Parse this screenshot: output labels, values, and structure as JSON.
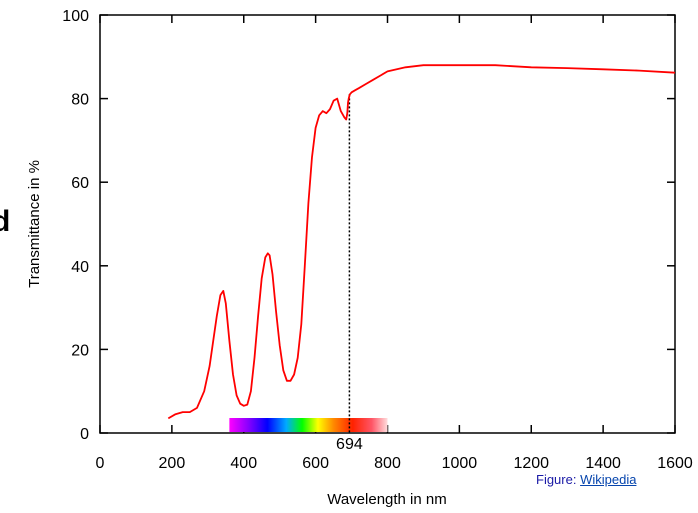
{
  "side_fragment": "d",
  "credit": {
    "prefix": "Figure: ",
    "link_text": "Wikipedia"
  },
  "chart_data": {
    "type": "line",
    "xlabel": "Wavelength in nm",
    "ylabel": "Transmittance in %",
    "xlim": [
      0,
      1600
    ],
    "ylim": [
      0,
      100
    ],
    "xticks": [
      0,
      200,
      400,
      600,
      800,
      1000,
      1200,
      1400,
      1600
    ],
    "yticks": [
      0,
      20,
      40,
      60,
      80,
      100
    ],
    "grid": false,
    "line_color": "#ff0000",
    "marker": {
      "x": 694,
      "label": "694",
      "style": "dotted"
    },
    "spectrum_bar": {
      "x_start": 360,
      "x_end": 800
    },
    "series": [
      {
        "x": [
          190,
          210,
          230,
          250,
          270,
          290,
          305,
          315,
          325,
          335,
          343,
          350,
          360,
          370,
          380,
          390,
          400,
          410,
          420,
          430,
          440,
          450,
          460,
          467,
          472,
          480,
          490,
          500,
          510,
          520,
          530,
          540,
          550,
          560,
          570,
          580,
          590,
          600,
          610,
          620,
          630,
          640,
          650,
          660,
          670,
          680,
          685,
          688,
          690,
          692,
          695,
          700,
          710,
          720,
          740,
          760,
          780,
          800,
          850,
          900,
          1000,
          1100,
          1200,
          1300,
          1400,
          1500,
          1600
        ],
        "y": [
          3.5,
          4.5,
          5,
          5,
          6,
          10,
          16,
          22,
          28,
          33,
          34,
          31,
          22,
          14,
          9,
          7,
          6.5,
          6.8,
          10,
          18,
          28,
          37,
          42,
          43,
          42.5,
          38,
          29,
          21,
          15,
          12.5,
          12.5,
          14,
          18,
          26,
          40,
          55,
          66,
          73,
          76,
          77,
          76.5,
          77.5,
          79.5,
          80,
          77,
          75.5,
          75,
          76.5,
          79,
          80,
          81,
          81.5,
          82,
          82.5,
          83.5,
          84.5,
          85.5,
          86.5,
          87.5,
          88,
          88,
          88,
          87.5,
          87.3,
          87,
          86.7,
          86.2
        ]
      }
    ]
  }
}
